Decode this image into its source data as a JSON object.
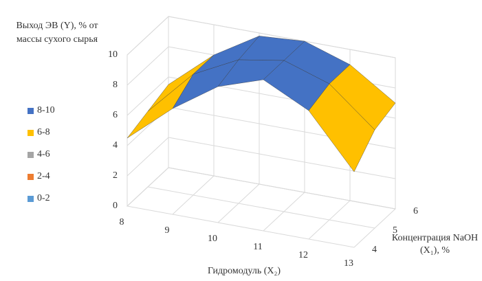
{
  "chart_data": {
    "type": "surface",
    "title": "Выход ЭВ (Y), % от массы сухого сырья",
    "x_label": "Гидромодуль (X₂)",
    "depth_label": "Концентрация NaOH (X₁), %",
    "categories": [
      "8",
      "9",
      "10",
      "11",
      "12",
      "13"
    ],
    "series": [
      {
        "name": "4",
        "values": [
          4.5,
          7,
          9,
          10,
          8.5,
          5
        ]
      },
      {
        "name": "5",
        "values": [
          5,
          8,
          9.5,
          10,
          9,
          6.5
        ]
      },
      {
        "name": "6",
        "values": [
          5.5,
          8,
          9.8,
          10,
          9,
          7
        ]
      }
    ],
    "ylim": [
      0,
      10
    ],
    "yticks": [
      0,
      2,
      4,
      6,
      8,
      10
    ],
    "grid": true,
    "bands": [
      {
        "label": "8-10",
        "min": 8,
        "max": 10,
        "color": "#4472c4"
      },
      {
        "label": "6-8",
        "min": 6,
        "max": 8,
        "color": "#ffc000"
      },
      {
        "label": "4-6",
        "min": 4,
        "max": 6,
        "color": "#a5a5a5"
      },
      {
        "label": "2-4",
        "min": 2,
        "max": 4,
        "color": "#ed7d31"
      },
      {
        "label": "0-2",
        "min": 0,
        "max": 2,
        "color": "#5b9bd5"
      }
    ]
  }
}
